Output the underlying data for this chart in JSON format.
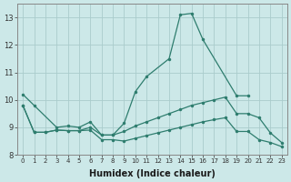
{
  "xlabel": "Humidex (Indice chaleur)",
  "background_color": "#cce8e8",
  "line_color": "#2e7d6e",
  "grid_color": "#aacccc",
  "ylim": [
    8.0,
    13.5
  ],
  "xlim": [
    -0.5,
    23.5
  ],
  "line_main": {
    "x": [
      0,
      1,
      3,
      4,
      5,
      6,
      7,
      8,
      9,
      10,
      11,
      13,
      14,
      15,
      16,
      19,
      20
    ],
    "y": [
      10.2,
      9.8,
      9.0,
      9.05,
      9.0,
      9.2,
      8.72,
      8.72,
      9.15,
      10.3,
      10.85,
      11.5,
      13.1,
      13.15,
      12.2,
      10.15,
      10.15
    ]
  },
  "line_upper": {
    "x": [
      0,
      1,
      2,
      3,
      4,
      5,
      6,
      7,
      8,
      9,
      10,
      11,
      12,
      13,
      14,
      15,
      16,
      17,
      18,
      19,
      20,
      21,
      22,
      23
    ],
    "y": [
      9.8,
      8.82,
      8.82,
      8.9,
      8.88,
      8.88,
      9.0,
      8.72,
      8.72,
      8.85,
      9.05,
      9.2,
      9.35,
      9.5,
      9.65,
      9.8,
      9.9,
      10.0,
      10.1,
      9.5,
      9.5,
      9.35,
      8.8,
      8.45
    ]
  },
  "line_lower": {
    "x": [
      0,
      1,
      2,
      3,
      4,
      5,
      6,
      7,
      8,
      9,
      10,
      11,
      12,
      13,
      14,
      15,
      16,
      17,
      18,
      19,
      20,
      21,
      22,
      23
    ],
    "y": [
      9.8,
      8.82,
      8.82,
      8.9,
      8.88,
      8.88,
      8.9,
      8.55,
      8.55,
      8.5,
      8.6,
      8.7,
      8.8,
      8.9,
      9.0,
      9.1,
      9.2,
      9.28,
      9.35,
      8.85,
      8.85,
      8.55,
      8.45,
      8.3
    ]
  }
}
